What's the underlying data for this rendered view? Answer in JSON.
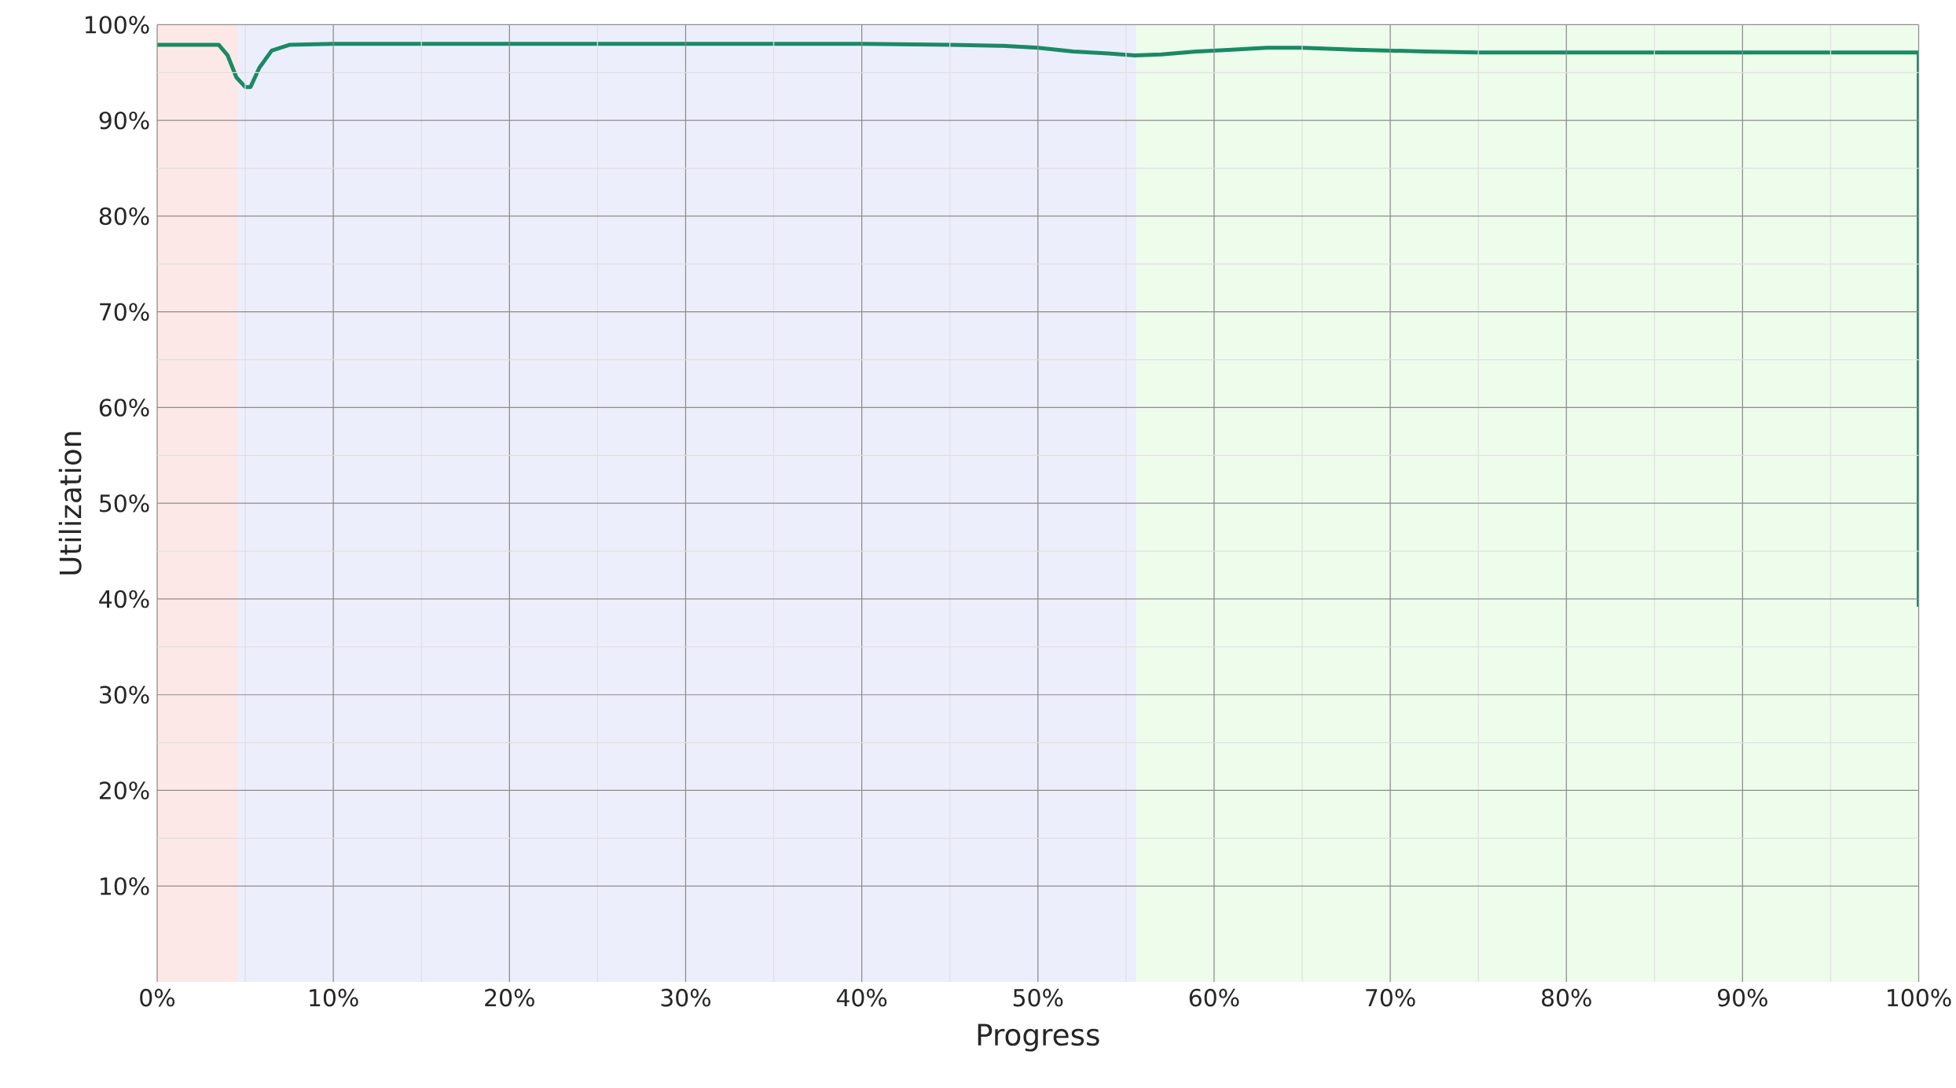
{
  "chart_data": {
    "type": "line",
    "xlabel": "Progress",
    "ylabel": "Utilization",
    "xlim": [
      0,
      100
    ],
    "ylim": [
      0,
      100
    ],
    "xticks": [
      {
        "value": 0,
        "label": "0%"
      },
      {
        "value": 10,
        "label": "10%"
      },
      {
        "value": 20,
        "label": "20%"
      },
      {
        "value": 30,
        "label": "30%"
      },
      {
        "value": 40,
        "label": "40%"
      },
      {
        "value": 50,
        "label": "50%"
      },
      {
        "value": 60,
        "label": "60%"
      },
      {
        "value": 70,
        "label": "70%"
      },
      {
        "value": 80,
        "label": "80%"
      },
      {
        "value": 90,
        "label": "90%"
      },
      {
        "value": 100,
        "label": "100%"
      }
    ],
    "yticks": [
      {
        "value": 10,
        "label": "10%"
      },
      {
        "value": 20,
        "label": "20%"
      },
      {
        "value": 30,
        "label": "30%"
      },
      {
        "value": 40,
        "label": "40%"
      },
      {
        "value": 50,
        "label": "50%"
      },
      {
        "value": 60,
        "label": "60%"
      },
      {
        "value": 70,
        "label": "70%"
      },
      {
        "value": 80,
        "label": "80%"
      },
      {
        "value": 90,
        "label": "90%"
      },
      {
        "value": 100,
        "label": "100%"
      }
    ],
    "grid": true,
    "bands": [
      {
        "axis": "x",
        "from": 0,
        "to": 4.6,
        "color": "#fde8e8"
      },
      {
        "axis": "x",
        "from": 4.6,
        "to": 55.6,
        "color": "#eceefc"
      },
      {
        "axis": "x",
        "from": 55.6,
        "to": 100,
        "color": "#eefcec"
      }
    ],
    "series": [
      {
        "color": "#1a8a64",
        "x": [
          0,
          3.5,
          4.0,
          4.5,
          5.0,
          5.3,
          5.8,
          6.5,
          7.5,
          10,
          20,
          30,
          40,
          45,
          48,
          50,
          52,
          54,
          55.5,
          57,
          59,
          61,
          63,
          65,
          68,
          72,
          75,
          85,
          95,
          100,
          100
        ],
        "values": [
          97.9,
          97.9,
          96.8,
          94.5,
          93.5,
          93.5,
          95.5,
          97.3,
          97.9,
          98.0,
          98.0,
          98.0,
          98.0,
          97.9,
          97.8,
          97.6,
          97.2,
          97.0,
          96.8,
          96.9,
          97.2,
          97.4,
          97.6,
          97.6,
          97.4,
          97.2,
          97.1,
          97.1,
          97.1,
          97.1,
          39.2
        ]
      }
    ]
  }
}
